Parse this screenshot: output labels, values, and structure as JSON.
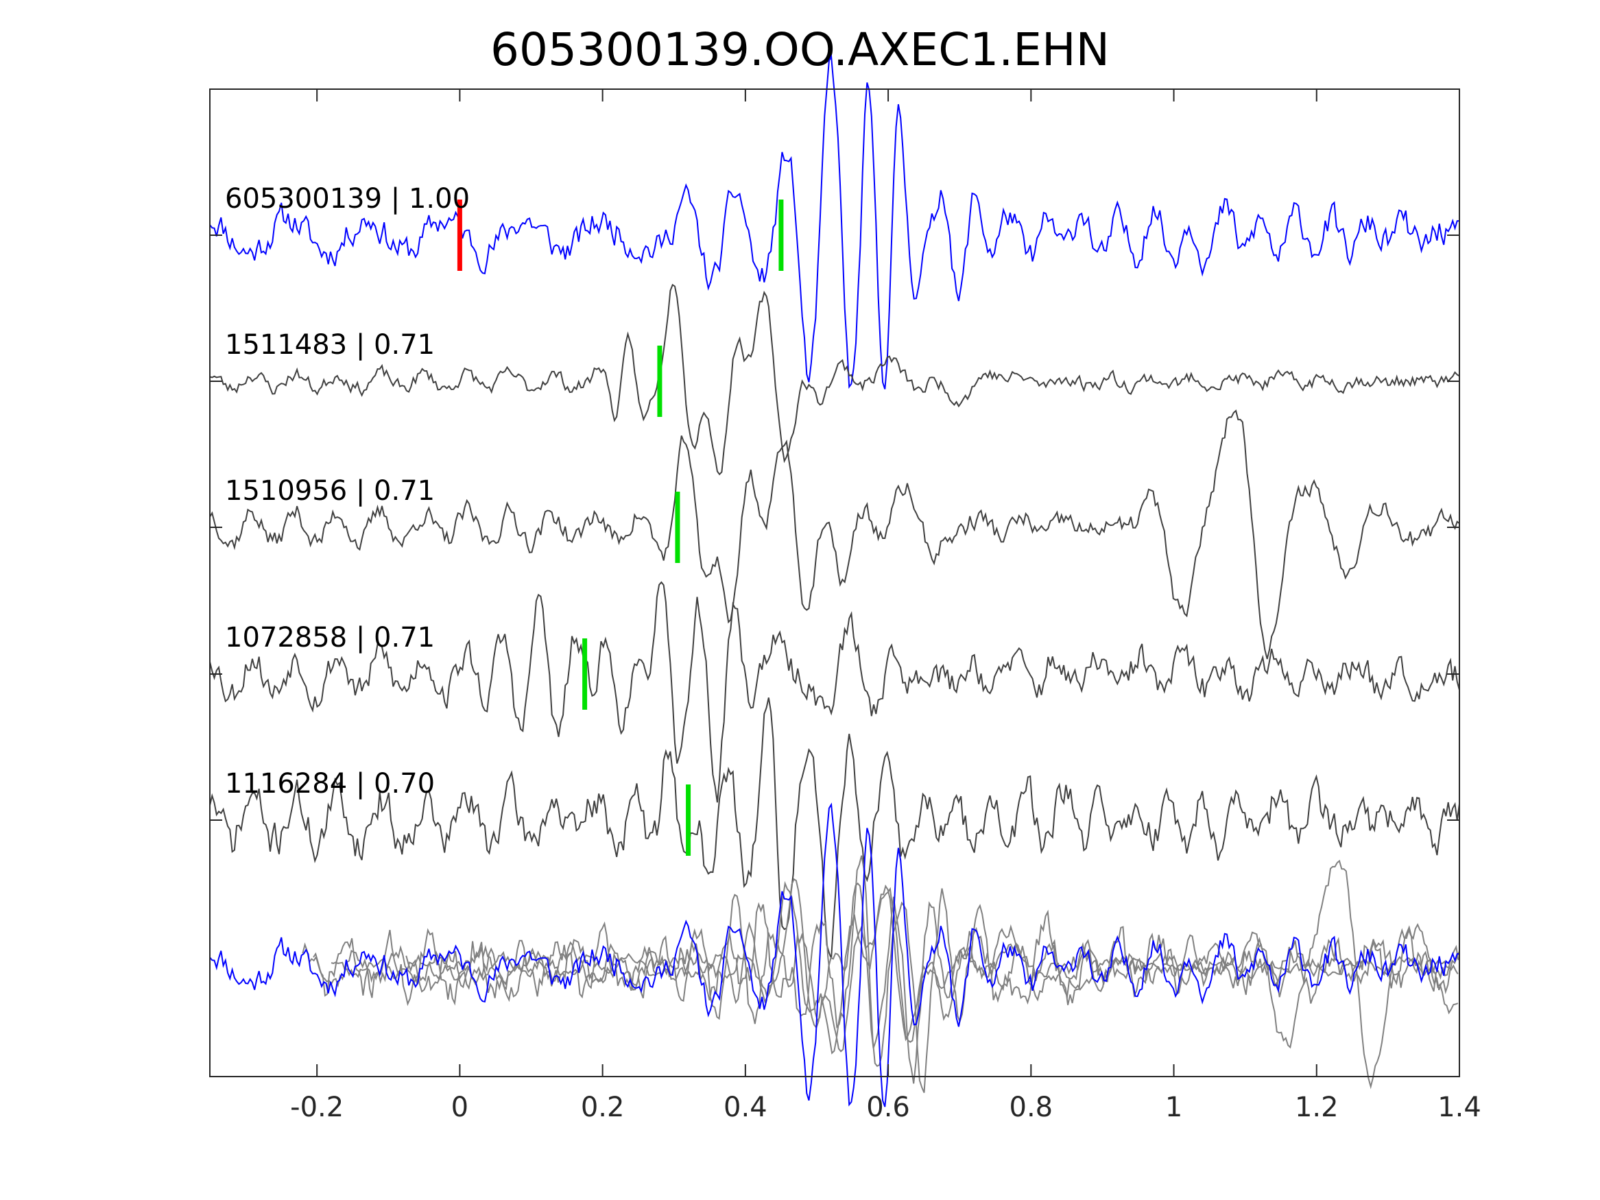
{
  "chart_data": {
    "type": "line",
    "title": "605300139.OO.AXEC1.EHN",
    "xlabel": "",
    "ylabel": "",
    "xlim": [
      -0.35,
      1.4
    ],
    "xticks": [
      -0.2,
      0,
      0.2,
      0.4,
      0.6,
      0.8,
      1,
      1.2,
      1.4
    ],
    "xtick_labels": [
      "-0.2",
      "0",
      "0.2",
      "0.4",
      "0.6",
      "0.8",
      "1",
      "1.2",
      "1.4"
    ],
    "grid": false,
    "colors": {
      "target": "#0000ff",
      "neighbor": "#404040",
      "overlay_neighbor": "#808080",
      "reference_pick": "#ff0000",
      "shift_pick": "#00e000"
    },
    "reference_pick": 0,
    "traces": [
      {
        "label": "605300139 | 1.00",
        "name": "605300139",
        "cc": 1.0,
        "color": "#0000ff",
        "pick": 0.45,
        "packets": [
          [
            -0.35,
            1.4,
            0.45,
            0.11,
            0.0,
            0.045
          ],
          [
            0.42,
            0.11,
            -1.4,
            0.07,
            0.0,
            0.05
          ],
          [
            0.52,
            0.06,
            3.4,
            0.06,
            0.2,
            0.055
          ],
          [
            0.6,
            0.05,
            -3.6,
            0.045,
            1.1,
            0.06
          ],
          [
            0.68,
            0.05,
            1.4,
            0.045,
            0.3,
            0.055
          ],
          [
            0.98,
            0.4,
            0.55,
            0.05,
            1.0,
            0.045
          ]
        ],
        "seed": 11,
        "noise": 0.42
      },
      {
        "label": "1511483 | 0.71",
        "name": "1511483",
        "cc": 0.71,
        "color": "#404040",
        "pick": 0.28,
        "packets": [
          [
            -0.35,
            1.4,
            0.2,
            0.06,
            0.0,
            0.05
          ],
          [
            0.24,
            0.04,
            1.0,
            0.04,
            0.6,
            0.06
          ],
          [
            0.31,
            0.035,
            3.2,
            0.07,
            1.2,
            0.09
          ],
          [
            0.37,
            0.035,
            -3.1,
            0.07,
            0.8,
            0.09
          ],
          [
            0.44,
            0.045,
            2.6,
            0.07,
            1.5,
            0.1
          ],
          [
            0.5,
            0.05,
            -1.1,
            0.09,
            0.6,
            0.12
          ],
          [
            0.6,
            0.07,
            0.55,
            0.12,
            0.3,
            0.2
          ],
          [
            0.7,
            0.07,
            -0.4,
            0.12,
            0.0,
            0.25
          ]
        ],
        "seed": 23,
        "noise": 0.2
      },
      {
        "label": "1510956 | 0.71",
        "name": "1510956",
        "cc": 0.71,
        "color": "#404040",
        "pick": 0.305,
        "packets": [
          [
            -0.35,
            1.4,
            0.4,
            0.06,
            0.0,
            0.05
          ],
          [
            0.33,
            0.035,
            2.5,
            0.07,
            1.4,
            0.09
          ],
          [
            0.385,
            0.035,
            -3.1,
            0.07,
            0.8,
            0.09
          ],
          [
            0.47,
            0.04,
            3.3,
            0.08,
            1.5,
            0.1
          ],
          [
            0.54,
            0.04,
            -1.6,
            0.09,
            0.3,
            0.1
          ],
          [
            0.64,
            0.05,
            1.2,
            0.09,
            1.0,
            0.11
          ],
          [
            1.03,
            0.06,
            -2.6,
            0.11,
            1.2,
            0.1
          ],
          [
            1.11,
            0.05,
            2.9,
            0.1,
            1.5,
            0.1
          ],
          [
            1.2,
            0.15,
            1.0,
            0.1,
            0.5,
            0.09
          ]
        ],
        "seed": 37,
        "noise": 0.3
      },
      {
        "label": "1072858 | 0.71",
        "name": "1072858",
        "cc": 0.71,
        "color": "#404040",
        "pick": 0.175,
        "packets": [
          [
            -0.35,
            1.4,
            0.5,
            0.06,
            0.0,
            0.045
          ],
          [
            0.12,
            0.06,
            2.2,
            0.055,
            1.2,
            0.05
          ],
          [
            0.23,
            0.05,
            -1.2,
            0.05,
            0.5,
            0.06
          ],
          [
            0.29,
            0.045,
            3.2,
            0.06,
            1.2,
            0.07
          ],
          [
            0.365,
            0.03,
            -3.3,
            0.06,
            0.6,
            0.08
          ],
          [
            0.46,
            0.05,
            1.0,
            0.09,
            1.0,
            0.1
          ],
          [
            0.55,
            0.06,
            0.9,
            0.07,
            0.2,
            0.07
          ],
          [
            0.95,
            0.45,
            0.5,
            0.06,
            0.0,
            0.055
          ]
        ],
        "seed": 53,
        "noise": 0.45
      },
      {
        "label": "1116284 | 0.70",
        "name": "1116284",
        "cc": 0.7,
        "color": "#404040",
        "pick": 0.32,
        "packets": [
          [
            -0.35,
            1.4,
            0.6,
            0.06,
            0.0,
            0.04
          ],
          [
            0.3,
            0.03,
            2.4,
            0.06,
            1.1,
            0.08
          ],
          [
            0.355,
            0.03,
            -1.6,
            0.055,
            0.4,
            0.08
          ],
          [
            0.44,
            0.04,
            3.2,
            0.055,
            1.3,
            0.06
          ],
          [
            0.52,
            0.035,
            -2.5,
            0.06,
            0.2,
            0.07
          ],
          [
            0.6,
            0.05,
            1.0,
            0.06,
            0.8,
            0.06
          ],
          [
            0.95,
            0.45,
            0.55,
            0.05,
            0.5,
            0.04
          ]
        ],
        "seed": 71,
        "noise": 0.55
      }
    ],
    "overlay": {
      "label": "",
      "series": [
        "605300139",
        "1511483",
        "1510956",
        "1072858",
        "1116284"
      ],
      "aligned": true
    }
  }
}
